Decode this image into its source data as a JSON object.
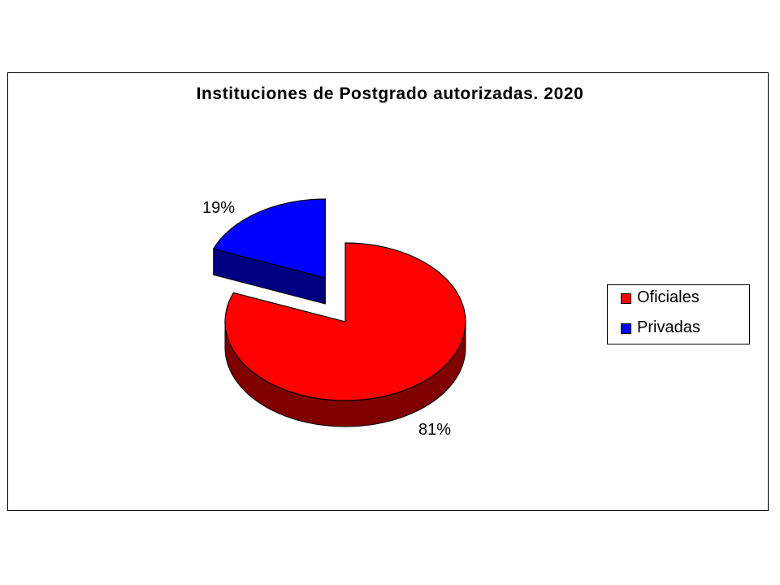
{
  "chart_data": {
    "type": "pie",
    "title": "Instituciones de Postgrado autorizadas. 2020",
    "three_d": true,
    "exploded": true,
    "legend_position": "right",
    "slices": [
      {
        "label": "Oficiales",
        "value": 81,
        "data_label": "81%",
        "color": "#FF0000",
        "side_color": "#800000"
      },
      {
        "label": "Privadas",
        "value": 19,
        "data_label": "19%",
        "color": "#0000FF",
        "side_color": "#000080"
      }
    ]
  }
}
